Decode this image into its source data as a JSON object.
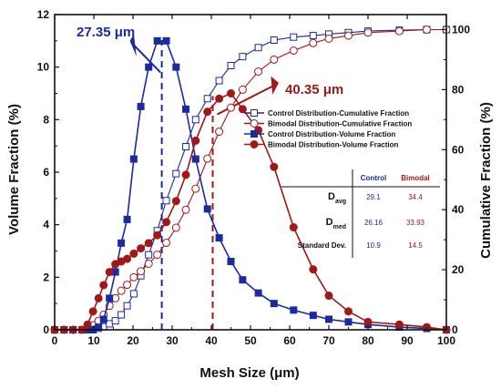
{
  "chart_data": {
    "type": "line",
    "xlabel": "Mesh Size (μm)",
    "ylabel_left": "Volume Fraction (%)",
    "ylabel_right": "Cumulative Fraction (%)",
    "xlim": [
      0,
      100
    ],
    "ylim_left": [
      0,
      12
    ],
    "ylim_right": [
      0,
      105
    ],
    "x_ticks": [
      "0",
      "10",
      "20",
      "30",
      "40",
      "50",
      "60",
      "70",
      "80",
      "90",
      "100"
    ],
    "y_left_ticks": [
      "0",
      "2",
      "4",
      "6",
      "8",
      "10",
      "12"
    ],
    "y_right_ticks": [
      "0",
      "20",
      "40",
      "60",
      "80",
      "100"
    ],
    "colors": {
      "control": "#1a2aa0",
      "bimodal": "#a01818"
    },
    "series": [
      {
        "name": "Control Distribution-Cumulative Fraction",
        "axis": "right",
        "color": "#1a2aa0",
        "marker": "square",
        "filled": false,
        "x": [
          0,
          2.4,
          4.7,
          7,
          8.4,
          9.8,
          11.2,
          12.5,
          14,
          15.5,
          17,
          18.5,
          20.2,
          22,
          24,
          26.2,
          28.5,
          31,
          33.5,
          36,
          39,
          42,
          45,
          48,
          52,
          56,
          61,
          66,
          70,
          75,
          80,
          88,
          95,
          100
        ],
        "y": [
          0,
          0,
          0,
          0,
          0,
          0,
          0.5,
          1,
          2,
          3,
          5,
          8,
          12,
          18,
          25,
          33,
          43,
          52,
          61,
          70,
          77,
          83,
          88,
          91,
          94,
          96.5,
          97.5,
          98,
          98.5,
          99,
          99.5,
          99.8,
          100,
          100
        ]
      },
      {
        "name": "Bimodal Distribution-Cumulative Fraction",
        "axis": "right",
        "color": "#a01818",
        "marker": "circle",
        "filled": false,
        "x": [
          0,
          2.4,
          4.7,
          7,
          8.4,
          9.8,
          11.2,
          12.5,
          14,
          15.5,
          17,
          18.5,
          20.2,
          22,
          24,
          26.2,
          28.5,
          31,
          33.5,
          36,
          39,
          42,
          45,
          48,
          52,
          56,
          61,
          66,
          70,
          75,
          80,
          88,
          95,
          100
        ],
        "y": [
          0,
          0,
          0,
          0,
          0.5,
          1.5,
          3,
          5,
          8,
          10.5,
          13,
          15,
          17.5,
          19.5,
          22,
          25,
          29,
          34,
          40,
          47,
          57,
          66,
          74,
          80,
          86,
          90,
          93,
          95.5,
          97,
          98,
          99,
          99.5,
          100,
          100
        ]
      },
      {
        "name": "Control Distribution-Volume Fraction",
        "axis": "left",
        "color": "#1a2aa0",
        "marker": "square",
        "filled": true,
        "x": [
          0,
          2.4,
          4.7,
          7,
          8.4,
          9.8,
          11.2,
          12.5,
          14,
          15.5,
          17,
          18.5,
          20.2,
          22,
          24,
          26.2,
          28.5,
          31,
          33.5,
          36,
          39,
          42,
          45,
          48,
          52,
          56,
          61,
          66,
          70,
          75,
          80,
          88,
          95,
          100
        ],
        "y": [
          0,
          0,
          0,
          0,
          0,
          0,
          0.1,
          0.4,
          1.2,
          2.2,
          3.3,
          4.2,
          6.5,
          8.5,
          10,
          11,
          11,
          10,
          8.4,
          6.5,
          4.6,
          3.5,
          2.6,
          1.9,
          1.4,
          1.0,
          0.75,
          0.55,
          0.4,
          0.3,
          0.2,
          0.1,
          0.05,
          0
        ]
      },
      {
        "name": "Bimodal Distribution-Volume Fraction",
        "axis": "left",
        "color": "#a01818",
        "marker": "circle",
        "filled": true,
        "x": [
          0,
          2.4,
          4.7,
          7,
          8.4,
          9.8,
          11.2,
          12.5,
          14,
          15.5,
          17,
          18.5,
          20.2,
          22,
          24,
          26.2,
          28.5,
          31,
          33.5,
          36,
          39,
          42,
          45,
          48,
          52,
          56,
          61,
          66,
          70,
          75,
          80,
          88,
          95,
          100
        ],
        "y": [
          0,
          0,
          0,
          0,
          0.2,
          0.7,
          1.2,
          1.7,
          2.2,
          2.5,
          2.6,
          2.7,
          2.9,
          3.1,
          3.3,
          3.6,
          4.1,
          4.9,
          5.9,
          7.2,
          8.3,
          8.8,
          9,
          8.4,
          7.6,
          6.2,
          3.9,
          2.3,
          1.3,
          0.7,
          0.3,
          0.2,
          0.1,
          0
        ]
      }
    ],
    "annotations": [
      {
        "text": "27.35 μm",
        "x": 27.35,
        "color": "#1a2aa0"
      },
      {
        "text": "40.35 μm",
        "x": 40.35,
        "color": "#a01818"
      }
    ],
    "stats_table": {
      "columns": [
        "Control",
        "Bimodal"
      ],
      "rows": [
        {
          "label": "D",
          "sub": "avg",
          "values": [
            "29.1",
            "34.4"
          ]
        },
        {
          "label": "D",
          "sub": "med",
          "values": [
            "26.16",
            "33.93"
          ]
        },
        {
          "label": "Standard Dev.",
          "sub": "",
          "values": [
            "10.9",
            "14.5"
          ]
        }
      ]
    }
  }
}
